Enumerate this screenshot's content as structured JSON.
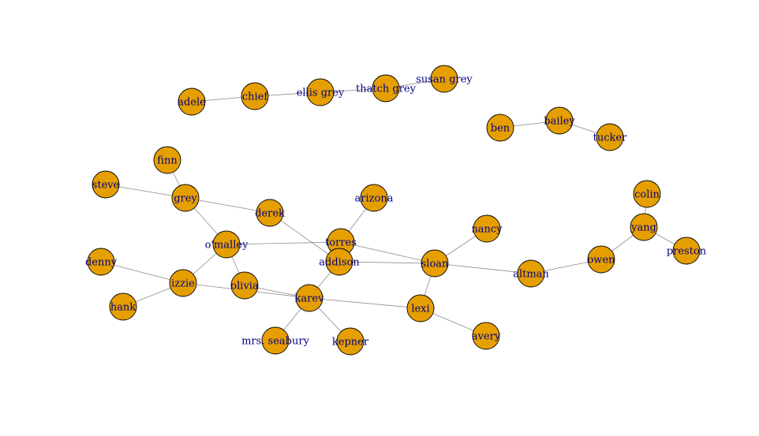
{
  "graph": {
    "type": "network",
    "node_color": "#e69f00",
    "label_color": "#000080",
    "edge_color": "#8c8c8c",
    "nodes": [
      {
        "id": "adele",
        "label": "adele"
      },
      {
        "id": "chief",
        "label": "chief"
      },
      {
        "id": "ellis grey",
        "label": "ellis grey"
      },
      {
        "id": "thatch grey",
        "label": "thatch grey"
      },
      {
        "id": "susan grey",
        "label": "susan grey"
      },
      {
        "id": "ben",
        "label": "ben"
      },
      {
        "id": "bailey",
        "label": "bailey"
      },
      {
        "id": "tucker",
        "label": "tucker"
      },
      {
        "id": "finn",
        "label": "finn"
      },
      {
        "id": "steve",
        "label": "steve"
      },
      {
        "id": "grey",
        "label": "grey"
      },
      {
        "id": "derek",
        "label": "derek"
      },
      {
        "id": "arizona",
        "label": "arizona"
      },
      {
        "id": "colin",
        "label": "colin"
      },
      {
        "id": "yang",
        "label": "yang"
      },
      {
        "id": "preston",
        "label": "preston"
      },
      {
        "id": "nancy",
        "label": "nancy"
      },
      {
        "id": "o'malley",
        "label": "o'malley"
      },
      {
        "id": "torres",
        "label": "torres"
      },
      {
        "id": "addison",
        "label": "addison"
      },
      {
        "id": "sloan",
        "label": "sloan"
      },
      {
        "id": "owen",
        "label": "owen"
      },
      {
        "id": "altman",
        "label": "altman"
      },
      {
        "id": "denny",
        "label": "denny"
      },
      {
        "id": "izzie",
        "label": "izzie"
      },
      {
        "id": "olivia",
        "label": "olivia"
      },
      {
        "id": "karev",
        "label": "karev"
      },
      {
        "id": "hank",
        "label": "hank"
      },
      {
        "id": "lexi",
        "label": "lexi"
      },
      {
        "id": "mrs. seabury",
        "label": "mrs. seabury"
      },
      {
        "id": "kepner",
        "label": "kepner"
      },
      {
        "id": "avery",
        "label": "avery"
      }
    ],
    "edges": [
      [
        "adele",
        "chief"
      ],
      [
        "chief",
        "ellis grey"
      ],
      [
        "ellis grey",
        "thatch grey"
      ],
      [
        "thatch grey",
        "susan grey"
      ],
      [
        "ben",
        "bailey"
      ],
      [
        "bailey",
        "tucker"
      ],
      [
        "finn",
        "grey"
      ],
      [
        "steve",
        "grey"
      ],
      [
        "grey",
        "derek"
      ],
      [
        "grey",
        "o'malley"
      ],
      [
        "derek",
        "addison"
      ],
      [
        "o'malley",
        "torres"
      ],
      [
        "o'malley",
        "izzie"
      ],
      [
        "o'malley",
        "olivia"
      ],
      [
        "arizona",
        "torres"
      ],
      [
        "torres",
        "sloan"
      ],
      [
        "addison",
        "sloan"
      ],
      [
        "addison",
        "karev"
      ],
      [
        "sloan",
        "nancy"
      ],
      [
        "sloan",
        "lexi"
      ],
      [
        "sloan",
        "altman"
      ],
      [
        "altman",
        "owen"
      ],
      [
        "owen",
        "yang"
      ],
      [
        "yang",
        "colin"
      ],
      [
        "yang",
        "preston"
      ],
      [
        "denny",
        "izzie"
      ],
      [
        "hank",
        "izzie"
      ],
      [
        "izzie",
        "karev"
      ],
      [
        "olivia",
        "karev"
      ],
      [
        "karev",
        "lexi"
      ],
      [
        "karev",
        "mrs. seabury"
      ],
      [
        "karev",
        "kepner"
      ],
      [
        "lexi",
        "avery"
      ]
    ]
  }
}
